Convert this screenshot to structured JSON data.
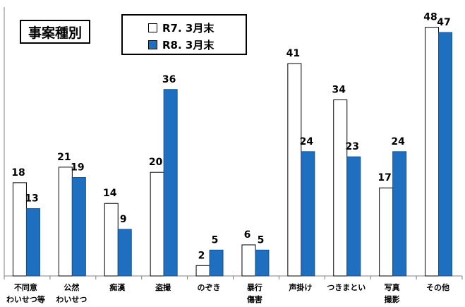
{
  "title": "事案種別",
  "chart_data": {
    "type": "bar",
    "categories": [
      [
        "不同意",
        "わいせつ等"
      ],
      [
        "公然",
        "わいせつ"
      ],
      [
        "痴漢"
      ],
      [
        "盗撮"
      ],
      [
        "のぞき"
      ],
      [
        "暴行",
        "傷害"
      ],
      [
        "声掛け"
      ],
      [
        "つきまとい"
      ],
      [
        "写真",
        "撮影"
      ],
      [
        "その他"
      ]
    ],
    "series": [
      {
        "name": "R7. 3月末",
        "values": [
          18,
          21,
          14,
          20,
          2,
          6,
          41,
          34,
          17,
          48
        ],
        "color": "#ffffff"
      },
      {
        "name": "R8. 3月末",
        "values": [
          13,
          19,
          9,
          36,
          5,
          5,
          24,
          23,
          24,
          47
        ],
        "color": "#1f6fc0"
      }
    ],
    "ylim": [
      0,
      50
    ],
    "grid": false,
    "legend_position": "top-center",
    "data_labels": true
  }
}
